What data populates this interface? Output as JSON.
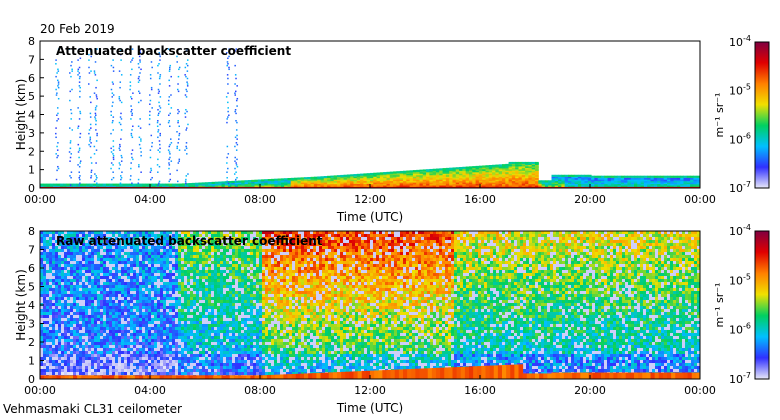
{
  "date_label": "20 Feb 2019",
  "footer_label": "Vehmasmaki CL31 ceilometer",
  "colors": {
    "colormap": [
      "#e8e8f8",
      "#3030ff",
      "#00c0ff",
      "#00d060",
      "#f0e000",
      "#ff8000",
      "#e00000",
      "#800040"
    ]
  },
  "chart_data": [
    {
      "type": "heatmap",
      "title": "Attenuated backscatter coefficient",
      "xlabel": "Time (UTC)",
      "ylabel": "Height (km)",
      "x_ticks": [
        "00:00",
        "04:00",
        "08:00",
        "12:00",
        "16:00",
        "20:00",
        "00:00"
      ],
      "y_ticks": [
        "0",
        "1",
        "2",
        "3",
        "4",
        "5",
        "6",
        "7",
        "8"
      ],
      "ylim": [
        0,
        8
      ],
      "colorbar": {
        "label": "m⁻¹ sr⁻¹",
        "scale": "log",
        "ticks": [
          {
            "base": "10",
            "exp": "-4"
          },
          {
            "base": "10",
            "exp": "-5"
          },
          {
            "base": "10",
            "exp": "-6"
          },
          {
            "base": "10",
            "exp": "-7"
          }
        ]
      }
    },
    {
      "type": "heatmap",
      "title": "Raw attenuated backscatter coefficient",
      "xlabel": "Time (UTC)",
      "ylabel": "Height (km)",
      "x_ticks": [
        "00:00",
        "04:00",
        "08:00",
        "12:00",
        "16:00",
        "20:00",
        "00:00"
      ],
      "y_ticks": [
        "0",
        "1",
        "2",
        "3",
        "4",
        "5",
        "6",
        "7",
        "8"
      ],
      "ylim": [
        0,
        8
      ],
      "colorbar": {
        "label": "m⁻¹ sr⁻¹",
        "scale": "log",
        "ticks": [
          {
            "base": "10",
            "exp": "-4"
          },
          {
            "base": "10",
            "exp": "-5"
          },
          {
            "base": "10",
            "exp": "-6"
          },
          {
            "base": "10",
            "exp": "-7"
          }
        ]
      }
    }
  ]
}
